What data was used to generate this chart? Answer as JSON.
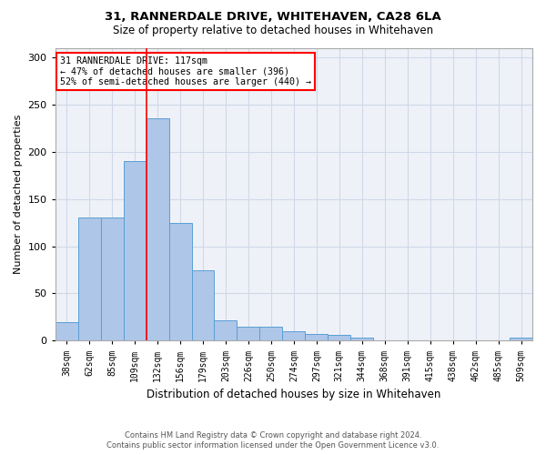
{
  "title1": "31, RANNERDALE DRIVE, WHITEHAVEN, CA28 6LA",
  "title2": "Size of property relative to detached houses in Whitehaven",
  "xlabel": "Distribution of detached houses by size in Whitehaven",
  "ylabel": "Number of detached properties",
  "categories": [
    "38sqm",
    "62sqm",
    "85sqm",
    "109sqm",
    "132sqm",
    "156sqm",
    "179sqm",
    "203sqm",
    "226sqm",
    "250sqm",
    "274sqm",
    "297sqm",
    "321sqm",
    "344sqm",
    "368sqm",
    "391sqm",
    "415sqm",
    "438sqm",
    "462sqm",
    "485sqm",
    "509sqm"
  ],
  "values": [
    20,
    130,
    130,
    190,
    235,
    125,
    75,
    22,
    15,
    15,
    10,
    7,
    6,
    3,
    0,
    0,
    0,
    0,
    0,
    0,
    3
  ],
  "bar_color": "#aec6e8",
  "bar_edge_color": "#5a9fd4",
  "grid_color": "#d0d8e8",
  "bg_color": "#eef2f8",
  "annotation_text": "31 RANNERDALE DRIVE: 117sqm\n← 47% of detached houses are smaller (396)\n52% of semi-detached houses are larger (440) →",
  "annotation_box_color": "white",
  "annotation_border_color": "red",
  "footer1": "Contains HM Land Registry data © Crown copyright and database right 2024.",
  "footer2": "Contains public sector information licensed under the Open Government Licence v3.0.",
  "ylim": [
    0,
    310
  ],
  "yticks": [
    0,
    50,
    100,
    150,
    200,
    250,
    300
  ],
  "vline_index": 3.5
}
